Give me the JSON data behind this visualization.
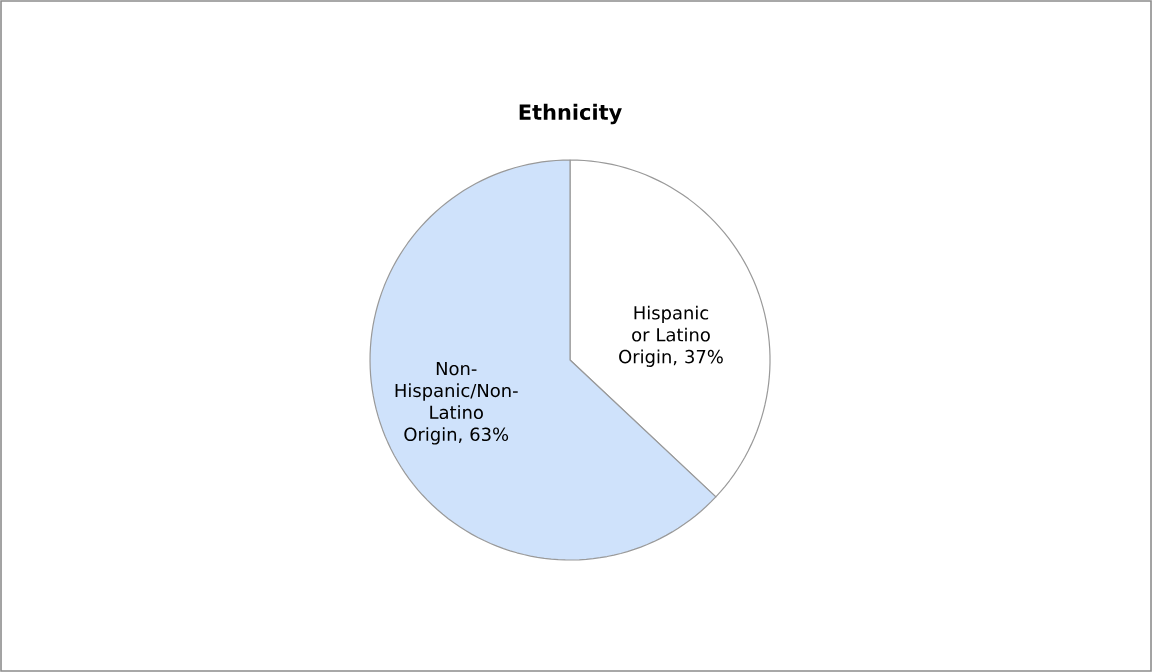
{
  "chart_data": {
    "type": "pie",
    "title": "Ethnicity",
    "categories": [
      "Hispanic or Latino Origin",
      "Non-Hispanic/Non-Latino Origin"
    ],
    "values": [
      37,
      63
    ],
    "value_labels": [
      ", 37%",
      ", 63%"
    ],
    "colors": [
      "#ffffff",
      "#cfe2fb"
    ]
  }
}
